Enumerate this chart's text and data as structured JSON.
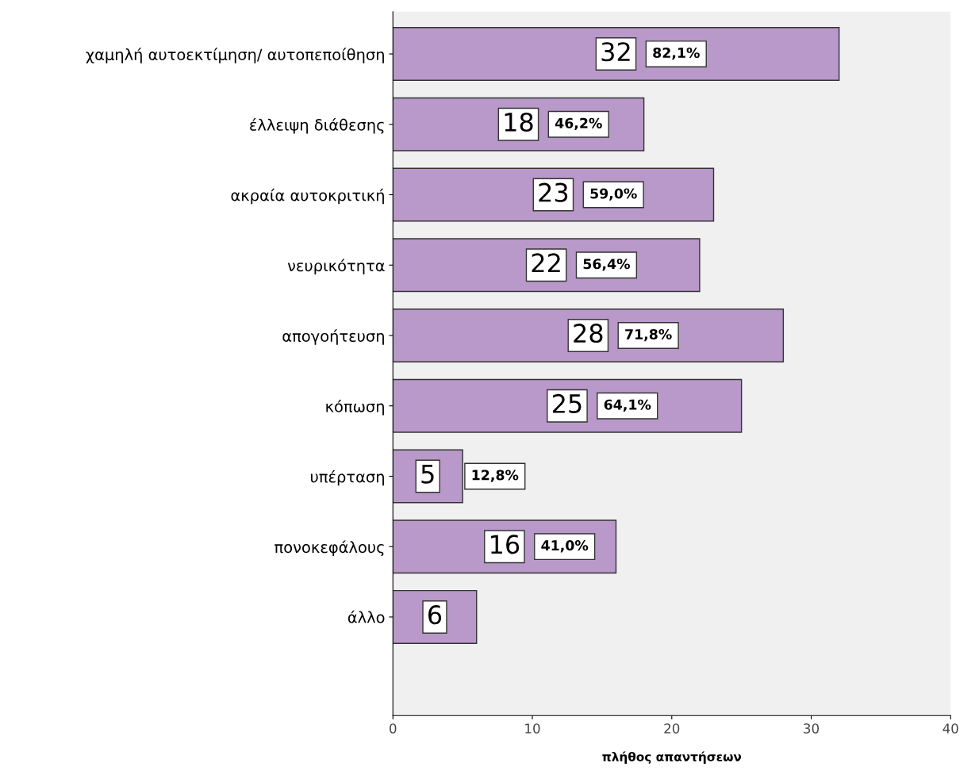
{
  "chart_data": {
    "type": "bar",
    "orientation": "horizontal",
    "xlabel": "πλήθος απαντήσεων",
    "categories": [
      "χαμηλή αυτοεκτίμηση/ αυτοπεποίθηση",
      "έλλειψη διάθεσης",
      "ακραία αυτοκριτική",
      "νευρικότητα",
      "απογοήτευση",
      "κόπωση",
      "υπέρταση",
      "πονοκεφάλους",
      "άλλο"
    ],
    "values": [
      32,
      18,
      23,
      22,
      28,
      25,
      5,
      16,
      6
    ],
    "color": "#b899c9",
    "data_labels": true,
    "annotations": [
      "82,1%",
      "46,2%",
      "59,0%",
      "56,4%",
      "71,8%",
      "64,1%",
      "12,8%",
      "41,0%"
    ],
    "xlim": [
      0,
      40
    ],
    "xticks": [
      0,
      10,
      20,
      30,
      40
    ],
    "grid": false,
    "legend": false
  }
}
